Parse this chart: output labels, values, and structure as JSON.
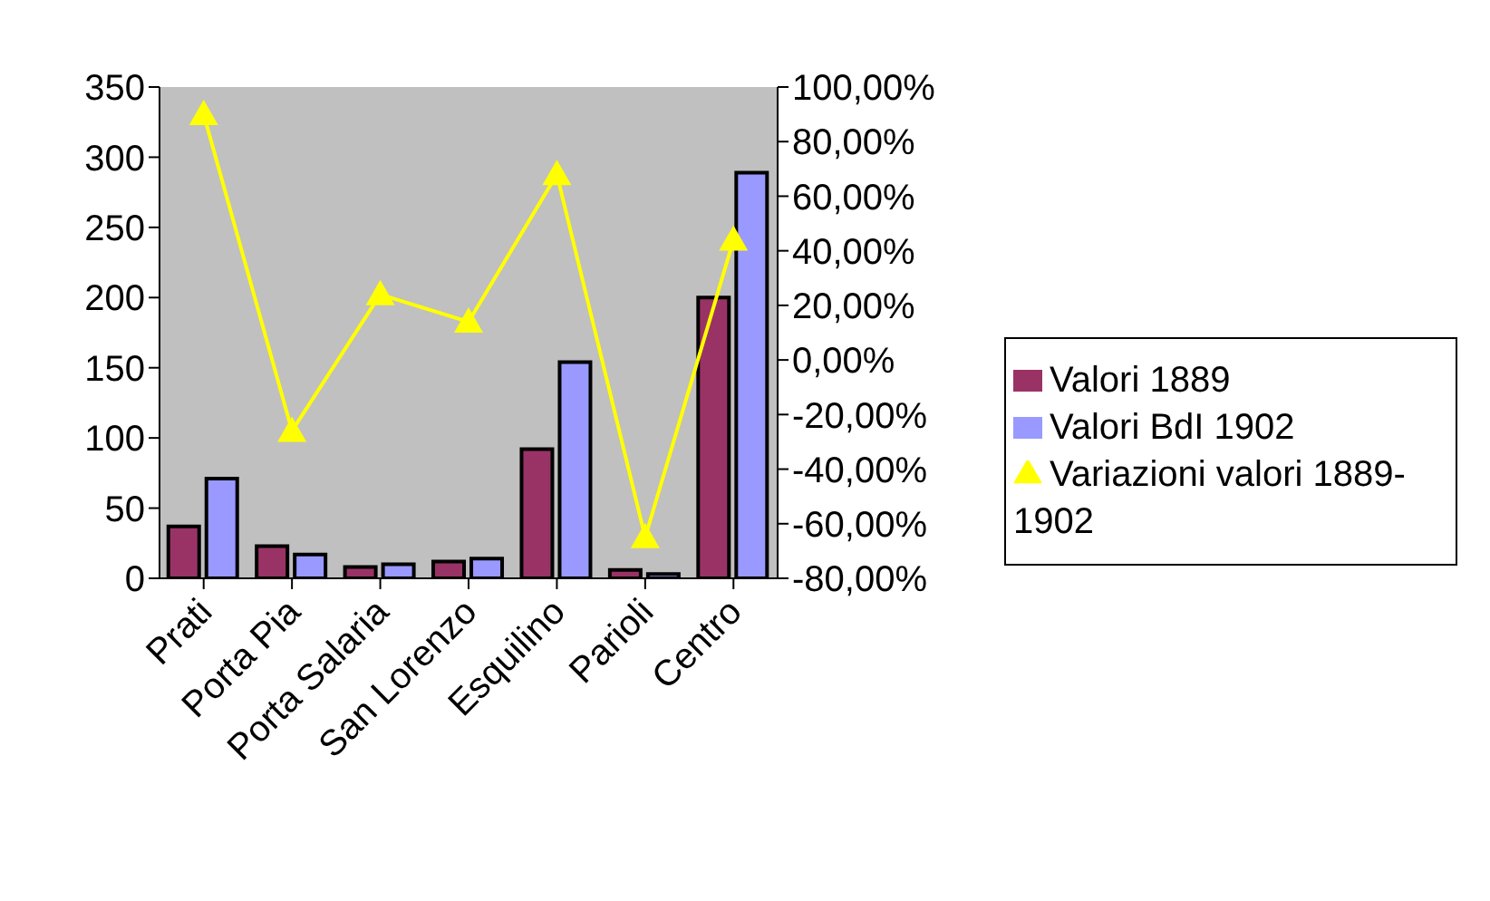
{
  "chart_data": {
    "type": "bar",
    "categories": [
      "Prati",
      "Porta Pia",
      "Porta Salaria",
      "San Lorenzo",
      "Esquilino",
      "Parioli",
      "Centro"
    ],
    "series": [
      {
        "name": "Valori 1889",
        "color": "#993366",
        "values": [
          37,
          23,
          8,
          12,
          92,
          6,
          200
        ]
      },
      {
        "name": "Valori BdI 1902",
        "color": "#9999ff",
        "values": [
          71,
          17,
          10,
          14,
          154,
          3,
          289
        ]
      },
      {
        "name": "Variazioni valori 1889-1902",
        "type": "line",
        "axis": "y2",
        "color": "#ffff00",
        "marker": "triangle",
        "values": [
          90,
          -26,
          24,
          14,
          68,
          -65,
          44
        ]
      }
    ],
    "ylim": [
      0,
      350
    ],
    "yticks": [
      0,
      50,
      100,
      150,
      200,
      250,
      300,
      350
    ],
    "y2lim": [
      -80,
      100
    ],
    "y2ticks": [
      {
        "value": -80,
        "label": "-80,00%"
      },
      {
        "value": -60,
        "label": "-60,00%"
      },
      {
        "value": -40,
        "label": "-40,00%"
      },
      {
        "value": -20,
        "label": "-20,00%"
      },
      {
        "value": 0,
        "label": "0,00%"
      },
      {
        "value": 20,
        "label": "20,00%"
      },
      {
        "value": 40,
        "label": "40,00%"
      },
      {
        "value": 60,
        "label": "60,00%"
      },
      {
        "value": 80,
        "label": "80,00%"
      },
      {
        "value": 100,
        "label": "100,00%"
      }
    ],
    "grid": false,
    "legend": "right"
  }
}
